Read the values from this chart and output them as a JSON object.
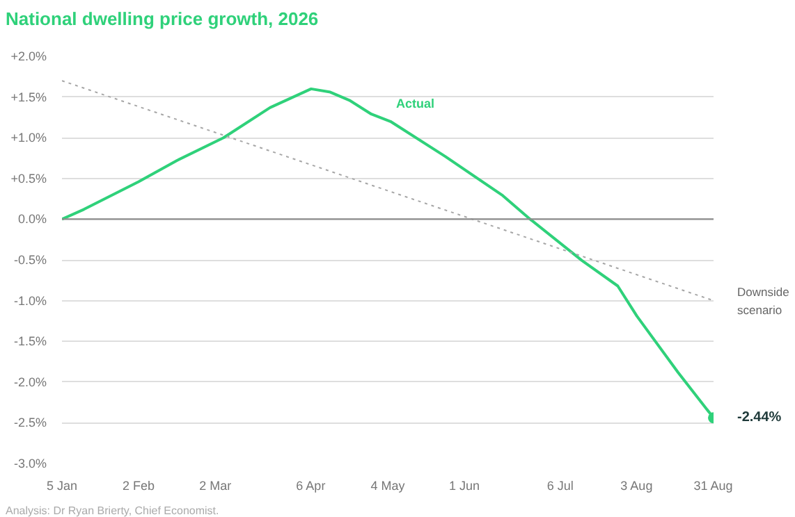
{
  "chart_data": {
    "type": "line",
    "title": "National dwelling price growth, 2026",
    "xlim": [
      "2026-01-05",
      "2026-08-31"
    ],
    "xticks": [
      {
        "value": "2026-01-05",
        "label": "5 Jan"
      },
      {
        "value": "2026-02-02",
        "label": "2 Feb"
      },
      {
        "value": "2026-03-02",
        "label": "2 Mar"
      },
      {
        "value": "2026-04-06",
        "label": "6 Apr"
      },
      {
        "value": "2026-05-04",
        "label": "4 May"
      },
      {
        "value": "2026-06-01",
        "label": "1 Jun"
      },
      {
        "value": "2026-07-06",
        "label": "6 Jul"
      },
      {
        "value": "2026-08-03",
        "label": "3 Aug"
      },
      {
        "value": "2026-08-31",
        "label": "31 Aug"
      }
    ],
    "ylim": [
      -3.0,
      2.0
    ],
    "yticks": [
      {
        "value": 2.0,
        "label": "+2.0%"
      },
      {
        "value": 1.5,
        "label": "+1.5%"
      },
      {
        "value": 1.0,
        "label": "+1.0%"
      },
      {
        "value": 0.5,
        "label": "+0.5%"
      },
      {
        "value": 0,
        "label": "0.0%"
      },
      {
        "value": -0.5,
        "label": "-0.5%"
      },
      {
        "value": -1.0,
        "label": "-1.0%"
      },
      {
        "value": -1.5,
        "label": "-1.5%"
      },
      {
        "value": -2.0,
        "label": "-2.0%"
      },
      {
        "value": -2.5,
        "label": "-2.5%"
      },
      {
        "value": -3.0,
        "label": "-3.0%"
      }
    ],
    "grid": "y",
    "legend": false,
    "ref_lines": [
      {
        "axis": "y",
        "value": 0,
        "color": "#8c8c8c"
      }
    ],
    "series": [
      {
        "name": "Actual",
        "color": "#2fd17a",
        "line_style": "solid",
        "x": [
          "2026-01-05",
          "2026-01-13",
          "2026-02-02",
          "2026-02-16",
          "2026-03-05",
          "2026-03-22",
          "2026-04-06",
          "2026-04-13",
          "2026-04-20",
          "2026-04-28",
          "2026-05-05",
          "2026-05-25",
          "2026-06-15",
          "2026-06-25",
          "2026-07-14",
          "2026-07-27",
          "2026-08-03",
          "2026-08-18",
          "2026-08-31"
        ],
        "values": [
          0,
          0.12,
          0.46,
          0.72,
          1.0,
          1.37,
          1.6,
          1.56,
          1.46,
          1.29,
          1.2,
          0.77,
          0.29,
          0.0,
          -0.51,
          -0.82,
          -1.19,
          -1.88,
          -2.44
        ],
        "value_labels": [
          null,
          null,
          null,
          null,
          null,
          null,
          null,
          null,
          null,
          null,
          null,
          null,
          null,
          null,
          null,
          null,
          null,
          null,
          "-2.44%"
        ]
      },
      {
        "name": "Downside scenario",
        "color": "#a6a6a6",
        "line_style": "dotted",
        "x": [
          "2026-01-05",
          "2026-08-31"
        ],
        "values": [
          1.7,
          -1.0
        ]
      }
    ],
    "annotations": [
      "Analysis: Dr Ryan Brierty, Chief Economist."
    ]
  }
}
